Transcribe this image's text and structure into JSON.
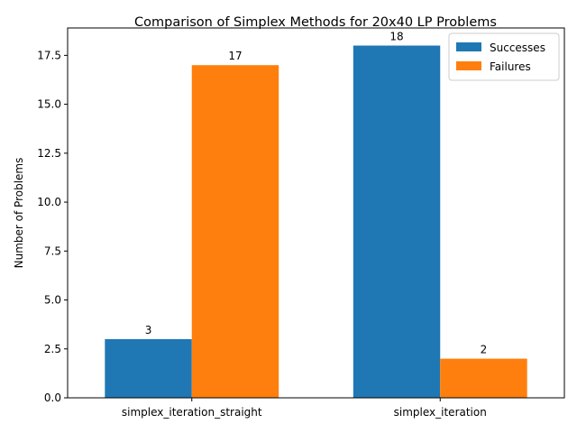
{
  "chart_data": {
    "type": "bar",
    "title": "Comparison of Simplex Methods for 20x40 LP Problems",
    "xlabel": "",
    "ylabel": "Number of Problems",
    "categories": [
      "simplex_iteration_straight",
      "simplex_iteration"
    ],
    "series": [
      {
        "name": "Successes",
        "values": [
          3,
          18
        ],
        "color": "#1f77b4"
      },
      {
        "name": "Failures",
        "values": [
          17,
          2
        ],
        "color": "#ff7f0e"
      }
    ],
    "ylim": [
      0,
      18.9
    ],
    "yticks": [
      "0.0",
      "2.5",
      "5.0",
      "7.5",
      "10.0",
      "12.5",
      "15.0",
      "17.5"
    ],
    "grid": false,
    "legend_position": "top-right",
    "data_labels": true
  }
}
